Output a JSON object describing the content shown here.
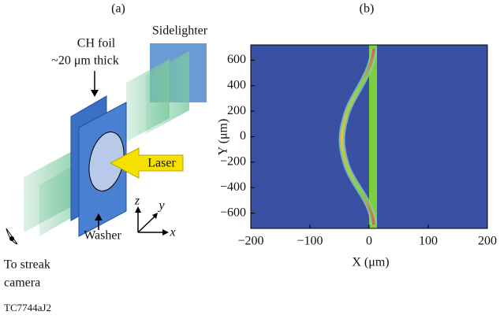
{
  "panel_a": {
    "label": "(a)",
    "foil": "CH foil",
    "thickness": "~20 μm thick",
    "sidelighter": "Sidelighter",
    "laser": "Laser",
    "washer": "Washer",
    "streak_1": "To streak",
    "streak_2": "camera",
    "axis_z": "z",
    "axis_y": "y",
    "axis_x": "x"
  },
  "chart_data": {
    "type": "image",
    "title": "(b)",
    "x_label": "X (μm)",
    "y_label": "Y (μm)",
    "xlim": [
      -200,
      200
    ],
    "ylim": [
      -720,
      720
    ],
    "xticks": [
      {
        "value": -200,
        "label": "−200"
      },
      {
        "value": -100,
        "label": "−100"
      },
      0,
      100,
      200
    ],
    "yticks": [
      {
        "value": -600,
        "label": "−600"
      },
      {
        "value": -400,
        "label": "−400"
      },
      {
        "value": -200,
        "label": "−200"
      },
      0,
      200,
      400,
      600
    ]
  },
  "footer": "TC7744aJ2"
}
